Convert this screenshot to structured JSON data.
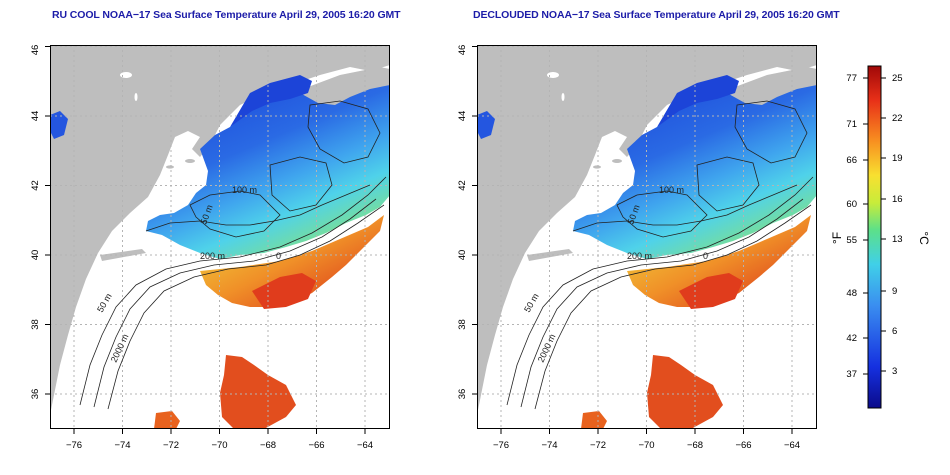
{
  "titles": {
    "left": "RU COOL NOAA−17 Sea Surface Temperature April 29, 2005 16:20 GMT",
    "right": "DECLOUDED NOAA−17 Sea Surface Temperature April 29, 2005 16:20 GMT"
  },
  "axes": {
    "x_ticks": [
      "−76",
      "−74",
      "−72",
      "−70",
      "−68",
      "−66",
      "−64"
    ],
    "y_ticks": [
      "36",
      "38",
      "40",
      "42",
      "44",
      "46"
    ]
  },
  "contour_labels": {
    "left": [
      "100 m",
      "50 m",
      "200 m",
      "50 m",
      "2000 m",
      "0"
    ],
    "right": [
      "100 m",
      "50 m",
      "200 m",
      "50 m",
      "2000 m",
      "0"
    ]
  },
  "colorbar": {
    "fahrenheit_label": "°F",
    "celsius_label": "°C",
    "fahrenheit_ticks": [
      "77",
      "71",
      "66",
      "60",
      "55",
      "48",
      "42",
      "37"
    ],
    "celsius_ticks": [
      "25",
      "22",
      "19",
      "16",
      "13",
      "9",
      "6",
      "3"
    ]
  },
  "colors": {
    "land": "#bebebe",
    "grid": "#b4b4b4",
    "title": "#1c1ca8",
    "cold": "#1a3fd6",
    "mid": "#4fc4ee",
    "warm_yellow": "#f5e63a",
    "warm_red": "#e0401c"
  }
}
